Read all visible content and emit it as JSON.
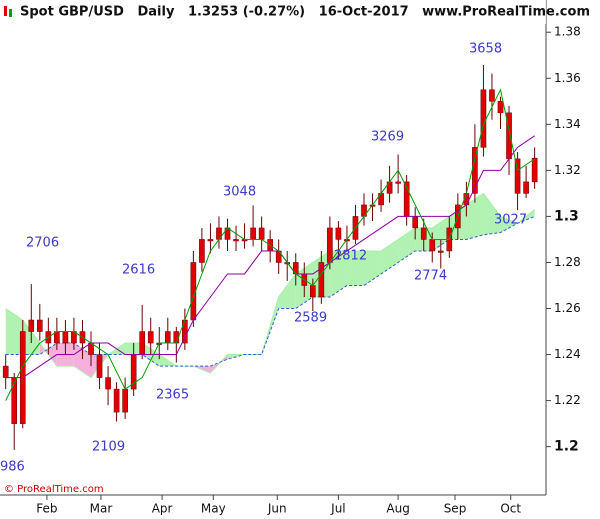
{
  "chart_data": {
    "type": "candlestick",
    "title": "Spot GBP/USD   Daily   1.3253 (-0.27%)   16-Oct-2017",
    "source": "www.ProRealTime.com",
    "footer": "© ProRealTime.com",
    "x": [
      0,
      3,
      6,
      9,
      12,
      15,
      18,
      21,
      24,
      27,
      30,
      33,
      36,
      39,
      42,
      45,
      48,
      51,
      54,
      57,
      60,
      63,
      66,
      69,
      72,
      75,
      78,
      81,
      84,
      87,
      90,
      93,
      96,
      99,
      102,
      105,
      108,
      111,
      114,
      117,
      120,
      123,
      126,
      129,
      132,
      135,
      138,
      141,
      144,
      147,
      150,
      153,
      156,
      159,
      162,
      165,
      168,
      171,
      174,
      177,
      180,
      183,
      186
    ],
    "ohlc": [
      [
        1.235,
        1.24,
        1.225,
        1.23
      ],
      [
        1.23,
        1.232,
        1.1986,
        1.21
      ],
      [
        1.21,
        1.255,
        1.208,
        1.25
      ],
      [
        1.25,
        1.2706,
        1.245,
        1.255
      ],
      [
        1.255,
        1.262,
        1.246,
        1.25
      ],
      [
        1.25,
        1.256,
        1.24,
        1.245
      ],
      [
        1.245,
        1.256,
        1.242,
        1.25
      ],
      [
        1.25,
        1.255,
        1.24,
        1.245
      ],
      [
        1.245,
        1.256,
        1.242,
        1.25
      ],
      [
        1.25,
        1.255,
        1.238,
        1.245
      ],
      [
        1.245,
        1.25,
        1.235,
        1.24
      ],
      [
        1.24,
        1.245,
        1.225,
        1.23
      ],
      [
        1.23,
        1.235,
        1.218,
        1.225
      ],
      [
        1.225,
        1.228,
        1.2109,
        1.215
      ],
      [
        1.215,
        1.23,
        1.212,
        1.225
      ],
      [
        1.225,
        1.245,
        1.222,
        1.24
      ],
      [
        1.24,
        1.2616,
        1.238,
        1.25
      ],
      [
        1.25,
        1.256,
        1.24,
        1.245
      ],
      [
        1.245,
        1.252,
        1.238,
        1.245
      ],
      [
        1.245,
        1.256,
        1.242,
        1.25
      ],
      [
        1.25,
        1.252,
        1.2365,
        1.245
      ],
      [
        1.245,
        1.26,
        1.242,
        1.255
      ],
      [
        1.255,
        1.285,
        1.252,
        1.28
      ],
      [
        1.28,
        1.295,
        1.276,
        1.29
      ],
      [
        1.29,
        1.297,
        1.284,
        1.29
      ],
      [
        1.29,
        1.3,
        1.286,
        1.295
      ],
      [
        1.295,
        1.299,
        1.285,
        1.29
      ],
      [
        1.29,
        1.296,
        1.285,
        1.29
      ],
      [
        1.29,
        1.297,
        1.286,
        1.29
      ],
      [
        1.29,
        1.3048,
        1.287,
        1.295
      ],
      [
        1.295,
        1.3,
        1.285,
        1.29
      ],
      [
        1.29,
        1.294,
        1.28,
        1.285
      ],
      [
        1.285,
        1.29,
        1.275,
        1.28
      ],
      [
        1.28,
        1.285,
        1.272,
        1.28
      ],
      [
        1.28,
        1.284,
        1.27,
        1.275
      ],
      [
        1.275,
        1.28,
        1.265,
        1.27
      ],
      [
        1.27,
        1.273,
        1.2589,
        1.265
      ],
      [
        1.265,
        1.285,
        1.262,
        1.28
      ],
      [
        1.28,
        1.3,
        1.277,
        1.295
      ],
      [
        1.295,
        1.298,
        1.2812,
        1.29
      ],
      [
        1.29,
        1.296,
        1.285,
        1.29
      ],
      [
        1.29,
        1.305,
        1.288,
        1.3
      ],
      [
        1.3,
        1.31,
        1.296,
        1.305
      ],
      [
        1.305,
        1.31,
        1.298,
        1.305
      ],
      [
        1.305,
        1.316,
        1.302,
        1.31
      ],
      [
        1.31,
        1.322,
        1.306,
        1.315
      ],
      [
        1.315,
        1.3269,
        1.31,
        1.315
      ],
      [
        1.315,
        1.318,
        1.296,
        1.3
      ],
      [
        1.3,
        1.304,
        1.29,
        1.295
      ],
      [
        1.295,
        1.299,
        1.285,
        1.29
      ],
      [
        1.29,
        1.293,
        1.28,
        1.285
      ],
      [
        1.285,
        1.29,
        1.2774,
        1.285
      ],
      [
        1.285,
        1.3,
        1.282,
        1.295
      ],
      [
        1.295,
        1.31,
        1.29,
        1.305
      ],
      [
        1.305,
        1.315,
        1.3,
        1.31
      ],
      [
        1.31,
        1.34,
        1.306,
        1.33
      ],
      [
        1.33,
        1.3658,
        1.326,
        1.355
      ],
      [
        1.355,
        1.362,
        1.342,
        1.35
      ],
      [
        1.35,
        1.352,
        1.338,
        1.345
      ],
      [
        1.345,
        1.348,
        1.318,
        1.325
      ],
      [
        1.325,
        1.328,
        1.3027,
        1.31
      ],
      [
        1.31,
        1.322,
        1.308,
        1.315
      ],
      [
        1.315,
        1.33,
        1.312,
        1.3253
      ]
    ],
    "candle_color": "#e00000",
    "ichimoku_x": [
      0,
      6,
      12,
      18,
      24,
      30,
      36,
      42,
      48,
      54,
      60,
      66,
      72,
      78,
      84,
      90,
      96,
      102,
      108,
      114,
      120,
      126,
      132,
      138,
      144,
      150,
      156,
      162,
      168,
      174,
      180,
      186
    ],
    "tenkan": {
      "color": "#00a000",
      "values": [
        1.22,
        1.235,
        1.245,
        1.25,
        1.25,
        1.245,
        1.24,
        1.225,
        1.23,
        1.245,
        1.245,
        1.265,
        1.285,
        1.295,
        1.29,
        1.29,
        1.285,
        1.275,
        1.27,
        1.28,
        1.29,
        1.3,
        1.31,
        1.32,
        1.305,
        1.29,
        1.29,
        1.31,
        1.34,
        1.355,
        1.32,
        1.325
      ]
    },
    "kijun": {
      "color": "#8a00a0",
      "values": [
        1.23,
        1.23,
        1.235,
        1.24,
        1.24,
        1.245,
        1.245,
        1.24,
        1.24,
        1.24,
        1.24,
        1.255,
        1.265,
        1.275,
        1.275,
        1.285,
        1.285,
        1.275,
        1.275,
        1.28,
        1.285,
        1.29,
        1.295,
        1.3,
        1.3,
        1.3,
        1.3,
        1.305,
        1.32,
        1.32,
        1.33,
        1.335
      ]
    },
    "span_a": [
      1.26,
      1.255,
      1.245,
      1.235,
      1.235,
      1.23,
      1.24,
      1.245,
      1.245,
      1.24,
      1.235,
      1.235,
      1.232,
      1.24,
      1.24,
      1.24,
      1.265,
      1.275,
      1.28,
      1.285,
      1.285,
      1.285,
      1.285,
      1.29,
      1.295,
      1.295,
      1.3,
      1.305,
      1.31,
      1.3,
      1.297,
      1.303
    ],
    "span_b": [
      1.24,
      1.24,
      1.24,
      1.245,
      1.245,
      1.24,
      1.24,
      1.24,
      1.24,
      1.235,
      1.235,
      1.235,
      1.235,
      1.238,
      1.24,
      1.24,
      1.26,
      1.26,
      1.265,
      1.265,
      1.27,
      1.27,
      1.275,
      1.28,
      1.285,
      1.285,
      1.29,
      1.29,
      1.292,
      1.293,
      1.297,
      1.3
    ],
    "cloud_up_color": "#a8f0a8",
    "cloud_down_color": "#f4a8d8",
    "span_b_color": "#3060d0",
    "annotations": [
      "986",
      "2109",
      "2365",
      "2616",
      "2706",
      "3048",
      "3269",
      "3658",
      "2589",
      "2812",
      "2774",
      "3027"
    ],
    "xlim": [
      -2,
      190
    ],
    "xticks": [
      {
        "value": 14.5,
        "label": "Feb"
      },
      {
        "value": 33.5,
        "label": "Mar"
      },
      {
        "value": 55,
        "label": "Apr"
      },
      {
        "value": 73,
        "label": "May"
      },
      {
        "value": 95.5,
        "label": "Jun"
      },
      {
        "value": 117,
        "label": "Jul"
      },
      {
        "value": 138,
        "label": "Aug"
      },
      {
        "value": 158,
        "label": "Sep"
      },
      {
        "value": 177.6,
        "label": "Oct"
      }
    ],
    "ylim": [
      1.179,
      1.394
    ],
    "yticks": [
      1.2,
      1.22,
      1.24,
      1.26,
      1.28,
      1.3,
      1.32,
      1.34,
      1.36,
      1.38
    ]
  }
}
